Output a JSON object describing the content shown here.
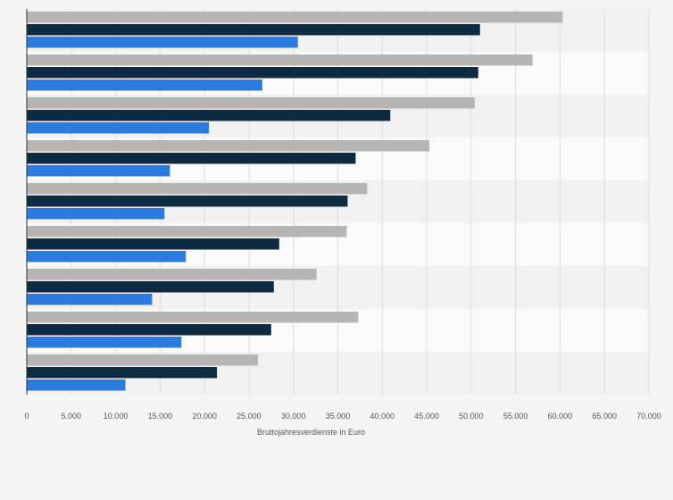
{
  "chart_data": {
    "type": "bar",
    "orientation": "horizontal",
    "title": "",
    "xlabel": "Bruttojahresverdienste in Euro",
    "ylabel": "",
    "xlim": [
      0,
      70000
    ],
    "x_ticks": [
      0,
      5000,
      10000,
      15000,
      20000,
      25000,
      30000,
      35000,
      40000,
      45000,
      50000,
      55000,
      60000,
      65000,
      70000
    ],
    "x_tick_labels": [
      "0",
      "5.000",
      "10.000",
      "15.000",
      "20.000",
      "25.000",
      "30.000",
      "35.000",
      "40.000",
      "45.000",
      "50.000",
      "55.000",
      "60.000",
      "65.000",
      "70.000"
    ],
    "category_count": 9,
    "grid": true,
    "legend": "none",
    "series": [
      {
        "color": "#b5b5b5",
        "values": [
          60300,
          56900,
          50400,
          45300,
          38300,
          36000,
          32600,
          37300,
          26000
        ]
      },
      {
        "color": "#0f2a43",
        "values": [
          51000,
          50800,
          40900,
          37000,
          36100,
          28400,
          27800,
          27500,
          21400
        ]
      },
      {
        "color": "#2b7bdd",
        "values": [
          30500,
          26500,
          20500,
          16100,
          15500,
          17900,
          14100,
          17400,
          11100
        ]
      }
    ]
  }
}
